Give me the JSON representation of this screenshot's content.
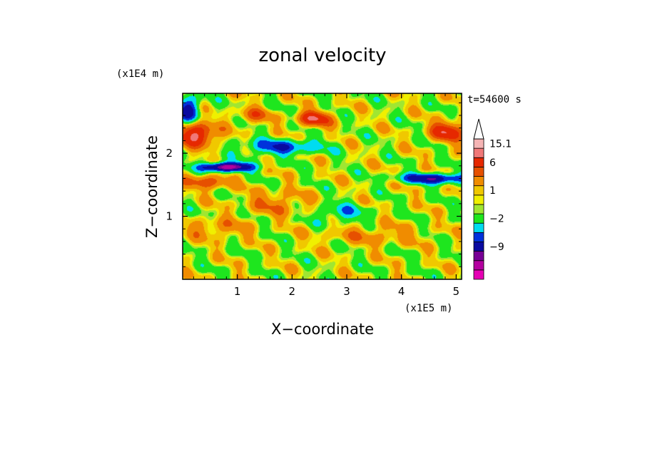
{
  "chart_data": {
    "type": "heatmap",
    "title": "zonal velocity",
    "xlabel": "X−coordinate",
    "ylabel": "Z−coordinate",
    "x_scale_label": "(x1E5 m)",
    "y_scale_label": "(x1E4 m)",
    "time_label": "t=54600 s",
    "xlim": [
      0.0,
      5.1
    ],
    "ylim": [
      0.0,
      2.95
    ],
    "x_ticks": [
      {
        "value": 1,
        "label": "1"
      },
      {
        "value": 2,
        "label": "2"
      },
      {
        "value": 3,
        "label": "3"
      },
      {
        "value": 4,
        "label": "4"
      },
      {
        "value": 5,
        "label": "5"
      }
    ],
    "y_ticks": [
      {
        "value": 1,
        "label": "1"
      },
      {
        "value": 2,
        "label": "2"
      }
    ],
    "colorbar": {
      "levels": [
        {
          "color": "#e600b4"
        },
        {
          "color": "#b400a0"
        },
        {
          "color": "#780096"
        },
        {
          "color": "#0a0aa0"
        },
        {
          "color": "#0032dc"
        },
        {
          "color": "#00dcf0"
        },
        {
          "color": "#1ee61e"
        },
        {
          "color": "#a0e632"
        },
        {
          "color": "#f0f000"
        },
        {
          "color": "#f0c800"
        },
        {
          "color": "#f08c00"
        },
        {
          "color": "#e65000"
        },
        {
          "color": "#e62800"
        },
        {
          "color": "#f07878"
        },
        {
          "color": "#f5b4b4"
        }
      ],
      "labels": [
        {
          "text": "15.1",
          "level": 14
        },
        {
          "text": "6",
          "level": 12
        },
        {
          "text": "1",
          "level": 9
        },
        {
          "text": "−2",
          "level": 6
        },
        {
          "text": "−9",
          "level": 3
        }
      ]
    },
    "field": {
      "base": 0.5,
      "components": [
        {
          "x": 0.25,
          "z": 2.3,
          "sx": 0.35,
          "sz": 0.18,
          "a": 9
        },
        {
          "x": 0.8,
          "z": 1.78,
          "sx": 0.45,
          "sz": 0.07,
          "a": -14
        },
        {
          "x": 0.45,
          "z": 1.55,
          "sx": 0.4,
          "sz": 0.12,
          "a": 5
        },
        {
          "x": 1.8,
          "z": 2.1,
          "sx": 0.7,
          "sz": 0.12,
          "a": -6
        },
        {
          "x": 2.4,
          "z": 2.55,
          "sx": 0.3,
          "sz": 0.12,
          "a": 8
        },
        {
          "x": 4.85,
          "z": 2.35,
          "sx": 0.3,
          "sz": 0.15,
          "a": 8
        },
        {
          "x": 4.6,
          "z": 1.6,
          "sx": 0.6,
          "sz": 0.08,
          "a": -9
        },
        {
          "x": 0.1,
          "z": 2.7,
          "sx": 0.2,
          "sz": 0.2,
          "a": -8
        },
        {
          "x": 2.9,
          "z": 1.05,
          "sx": 0.5,
          "sz": 0.15,
          "a": -3.5
        },
        {
          "x": 1.3,
          "z": 2.6,
          "sx": 0.3,
          "sz": 0.12,
          "a": 4
        },
        {
          "x": 3.5,
          "z": 0.7,
          "sx": 0.9,
          "sz": 0.15,
          "a": 2.5
        },
        {
          "x": 0.6,
          "z": 0.8,
          "sx": 0.6,
          "sz": 0.15,
          "a": 2.8
        },
        {
          "x": 1.7,
          "z": 1.2,
          "sx": 0.6,
          "sz": 0.2,
          "a": 3
        }
      ]
    }
  }
}
